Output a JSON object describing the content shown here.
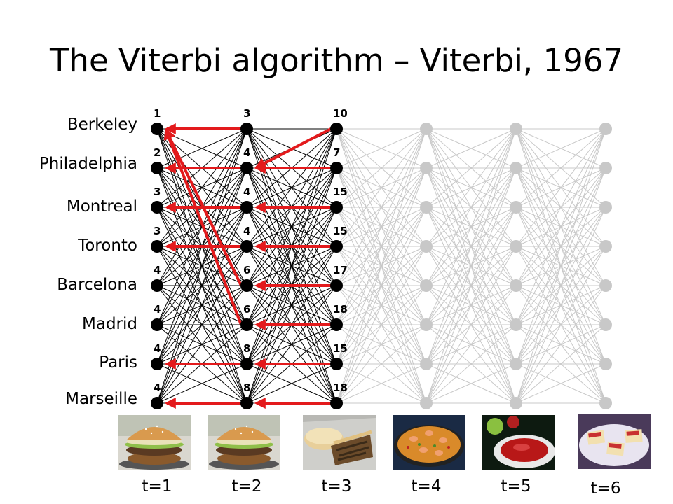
{
  "title": "The Viterbi algorithm – Viterbi, 1967",
  "states": [
    "Berkeley",
    "Philadelphia",
    "Montreal",
    "Toronto",
    "Barcelona",
    "Madrid",
    "Paris",
    "Marseille"
  ],
  "time_labels": [
    "t=1",
    "t=2",
    "t=3",
    "t=4",
    "t=5",
    "t=6"
  ],
  "scores": [
    [
      "1",
      "2",
      "3",
      "3",
      "4",
      "4",
      "4",
      "4"
    ],
    [
      "3",
      "4",
      "4",
      "4",
      "6",
      "6",
      "8",
      "8"
    ],
    [
      "10",
      "7",
      "15",
      "15",
      "17",
      "18",
      "15",
      "18"
    ]
  ],
  "backpointers": [
    [
      0,
      1,
      2,
      3,
      0,
      0,
      6,
      7
    ],
    [
      1,
      1,
      2,
      3,
      4,
      5,
      6,
      7
    ]
  ],
  "foods": [
    {
      "name": "burger-image"
    },
    {
      "name": "burger-image"
    },
    {
      "name": "sandwich-image"
    },
    {
      "name": "paella-image"
    },
    {
      "name": "gazpacho-image"
    },
    {
      "name": "tapas-image"
    }
  ],
  "colors": {
    "active": "#000000",
    "inactive": "#c8c8c8",
    "backpointer": "#e31a1c"
  }
}
